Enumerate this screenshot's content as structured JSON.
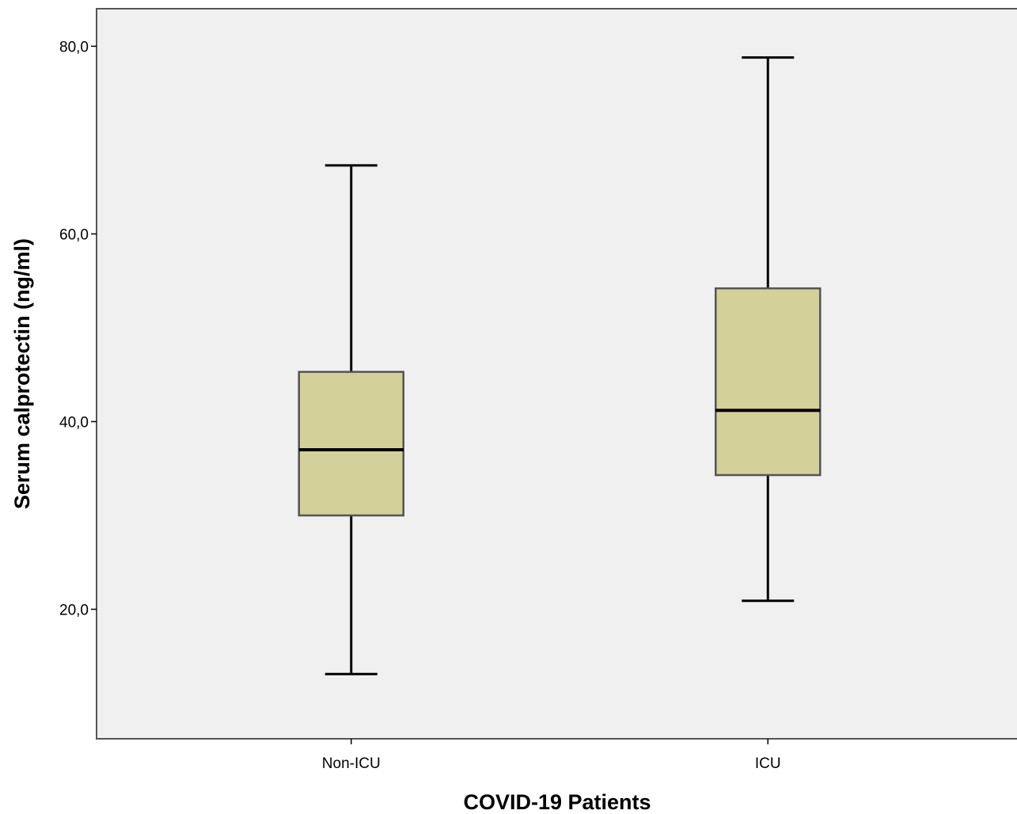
{
  "chart_data": {
    "type": "boxplot",
    "xlabel": "COVID-19 Patients",
    "ylabel": "Serum calprotectin (ng/ml)",
    "ylim": [
      6.2,
      84.0
    ],
    "yticks": [
      20,
      40,
      60,
      80
    ],
    "ytick_labels": [
      "20,0",
      "40,0",
      "60,0",
      "80,0"
    ],
    "categories": [
      "Non-ICU",
      "ICU"
    ],
    "boxes": [
      {
        "category": "Non-ICU",
        "min": 13.1,
        "q1": 30.0,
        "median": 37.0,
        "q3": 45.3,
        "max": 67.3
      },
      {
        "category": "ICU",
        "min": 20.9,
        "q1": 34.3,
        "median": 41.2,
        "q3": 54.2,
        "max": 78.8
      }
    ],
    "grid": false,
    "legend": "none",
    "colors": {
      "plot_background": "#f0f0f0",
      "box_fill": "#d4d09a",
      "box_stroke": "#555555",
      "median_line": "#000000",
      "frame": "#555555"
    }
  }
}
